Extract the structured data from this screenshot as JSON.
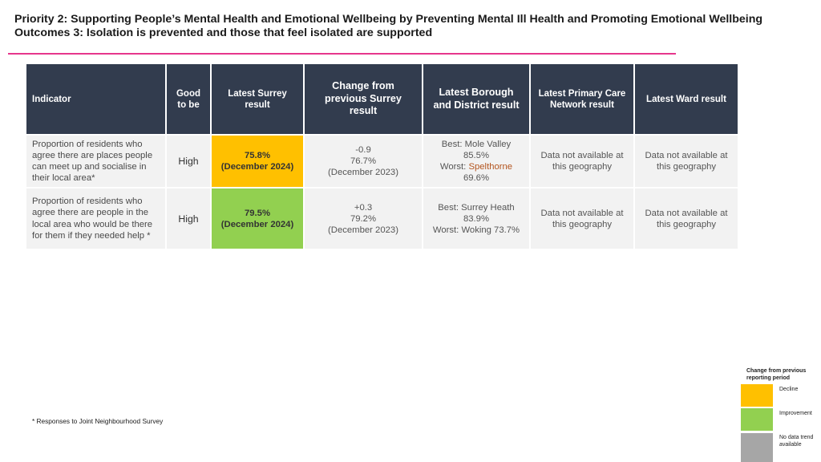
{
  "title": {
    "line1": "Priority 2: Supporting People’s Mental Health and Emotional Wellbeing by Preventing Mental Ill Health and Promoting Emotional Wellbeing",
    "line2": "Outcomes 3: Isolation is prevented and those that feel isolated are supported"
  },
  "table": {
    "headers": {
      "indicator": "Indicator",
      "good_line1": "Good",
      "good_line2": "to be",
      "surrey_line1": "Latest Surrey",
      "surrey_line2": "result",
      "change_line1": "Change from",
      "change_line2": "previous Surrey",
      "change_line3": "result",
      "borough_line1": "Latest Borough",
      "borough_line2": "and District result",
      "pcn_line1": "Latest Primary Care",
      "pcn_line2": "Network result",
      "ward": "Latest Ward result"
    },
    "rows": [
      {
        "indicator_lines": [
          "Proportion of residents who",
          "agree there are places people",
          "can meet up and socialise in",
          "their local area*"
        ],
        "good": "High",
        "surrey_value": "75.8%",
        "surrey_date": "(December 2024)",
        "change": "-0.9",
        "previous_value": "76.7%",
        "previous_date": "(December 2023)",
        "best": "Best: Mole Valley",
        "best_value": "85.5%",
        "worst_label": "Worst: ",
        "worst_name": "Spelthorne",
        "worst_value": "69.6%",
        "pcn_line1": "Data not available at",
        "pcn_line2": "this geography",
        "ward_line1": "Data not available at",
        "ward_line2": "this geography"
      },
      {
        "indicator_lines": [
          "Proportion of residents who",
          "agree there are people in the",
          "local area who would be there",
          "for them if they needed help *"
        ],
        "good": "High",
        "surrey_value": "79.5%",
        "surrey_date": "(December 2024)",
        "change": "+0.3",
        "previous_value": "79.2%",
        "previous_date": "(December 2023)",
        "best": "Best: Surrey Heath",
        "best_value": "83.9%",
        "worst": "Worst: Woking 73.7%",
        "pcn_line1": "Data not available at",
        "pcn_line2": "this geography",
        "ward_line1": "Data not available at",
        "ward_line2": "this geography"
      }
    ]
  },
  "footnote": "* Responses to Joint Neighbourhood Survey",
  "legend": {
    "title": "Change from previous reporting period",
    "decline": "Decline",
    "improvement": "Improvement",
    "no_data": "No data trend available",
    "colors": {
      "decline": "#ffc000",
      "improvement": "#92d050",
      "no_data": "#a6a6a6"
    }
  }
}
